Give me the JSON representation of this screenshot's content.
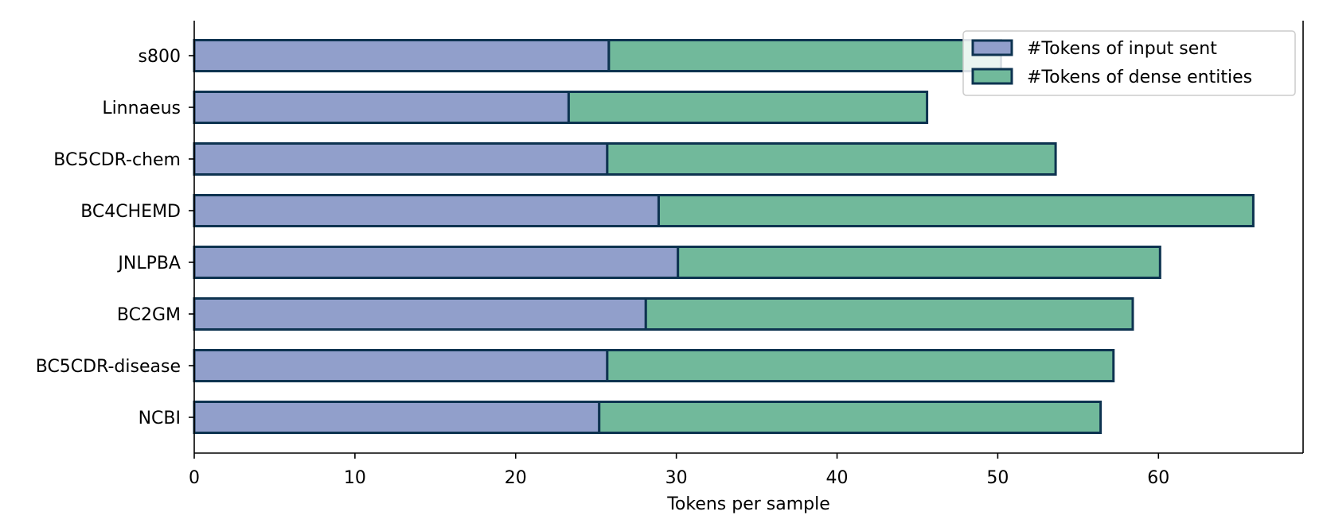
{
  "chart_data": {
    "type": "bar",
    "orientation": "horizontal",
    "stacked": true,
    "categories": [
      "s800",
      "Linnaeus",
      "BC5CDR-chem",
      "BC4CHEMD",
      "JNLPBA",
      "BC2GM",
      "BC5CDR-disease",
      "NCBI"
    ],
    "series": [
      {
        "name": "#Tokens of input sent",
        "color": "#919fcb",
        "values": [
          25.8,
          23.3,
          25.7,
          28.9,
          30.1,
          28.1,
          25.7,
          25.2
        ]
      },
      {
        "name": "#Tokens of dense entities",
        "color": "#71b99b",
        "values": [
          24.4,
          22.3,
          27.9,
          37.0,
          30.0,
          30.3,
          31.5,
          31.2
        ]
      }
    ],
    "edge_color": "#0d3350",
    "xlabel": "Tokens per sample",
    "ylabel": "",
    "xlim": [
      0,
      69
    ],
    "xticks": [
      0,
      10,
      20,
      30,
      40,
      50,
      60
    ],
    "grid": false,
    "legend_position": "top-right"
  }
}
